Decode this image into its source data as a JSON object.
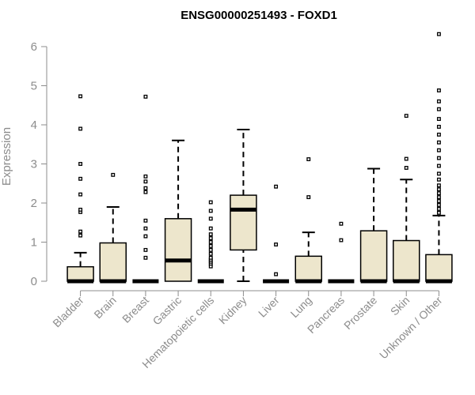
{
  "chart_data": {
    "type": "box",
    "title": "ENSG00000251493 - FOXD1",
    "xlabel": "",
    "ylabel": "Expression",
    "ylim": [
      0,
      6.4
    ],
    "yticks": [
      0,
      1,
      2,
      3,
      4,
      5,
      6
    ],
    "grid": false,
    "colors": {
      "box_fill": "#ede6cc",
      "stroke": "#000000",
      "axis": "#8c8c8c",
      "text": "#8c8c8c"
    },
    "categories": [
      "Bladder",
      "Brain",
      "Breast",
      "Gastric",
      "Hematopoietic cells",
      "Kidney",
      "Liver",
      "Lung",
      "Pancreas",
      "Prostate",
      "Skin",
      "Unknown / Other"
    ],
    "boxes": [
      {
        "min": 0,
        "q1": 0,
        "median": 0,
        "q3": 0.37,
        "max": 0.73,
        "outliers": [
          1.17,
          1.27,
          1.77,
          1.83,
          2.22,
          2.62,
          3.0,
          3.9,
          4.73
        ]
      },
      {
        "min": 0,
        "q1": 0,
        "median": 0,
        "q3": 0.98,
        "max": 1.9,
        "outliers": [
          2.72
        ]
      },
      {
        "min": 0,
        "q1": 0,
        "median": 0,
        "q3": 0,
        "max": 0,
        "outliers": [
          0.6,
          0.8,
          1.15,
          1.35,
          1.55,
          2.28,
          2.38,
          2.55,
          2.68,
          4.72
        ]
      },
      {
        "min": 0,
        "q1": 0,
        "median": 0.53,
        "q3": 1.6,
        "max": 3.6,
        "outliers": []
      },
      {
        "min": 0,
        "q1": 0,
        "median": 0,
        "q3": 0,
        "max": 0,
        "outliers": [
          0.38,
          0.45,
          0.5,
          0.55,
          0.6,
          0.7,
          0.8,
          0.9,
          1.0,
          1.1,
          1.2,
          1.35,
          1.6,
          1.8,
          2.02
        ]
      },
      {
        "min": 0,
        "q1": 0.8,
        "median": 1.83,
        "q3": 2.2,
        "max": 3.88,
        "outliers": []
      },
      {
        "min": 0,
        "q1": 0,
        "median": 0,
        "q3": 0,
        "max": 0,
        "outliers": [
          0.18,
          0.94,
          2.42
        ]
      },
      {
        "min": 0,
        "q1": 0,
        "median": 0,
        "q3": 0.64,
        "max": 1.25,
        "outliers": [
          2.15,
          3.12
        ]
      },
      {
        "min": 0,
        "q1": 0,
        "median": 0,
        "q3": 0,
        "max": 0,
        "outliers": [
          1.05,
          1.47
        ]
      },
      {
        "min": 0,
        "q1": 0,
        "median": 0,
        "q3": 1.29,
        "max": 2.88,
        "outliers": []
      },
      {
        "min": 0,
        "q1": 0,
        "median": 0,
        "q3": 1.04,
        "max": 2.6,
        "outliers": [
          2.9,
          3.13,
          4.23
        ]
      },
      {
        "min": 0,
        "q1": 0,
        "median": 0,
        "q3": 0.68,
        "max": 1.68,
        "outliers": [
          1.75,
          1.85,
          1.95,
          2.05,
          2.15,
          2.25,
          2.35,
          2.45,
          2.6,
          2.75,
          2.95,
          3.15,
          3.35,
          3.55,
          3.75,
          3.95,
          4.15,
          4.4,
          4.6,
          4.88,
          6.32
        ]
      }
    ]
  }
}
